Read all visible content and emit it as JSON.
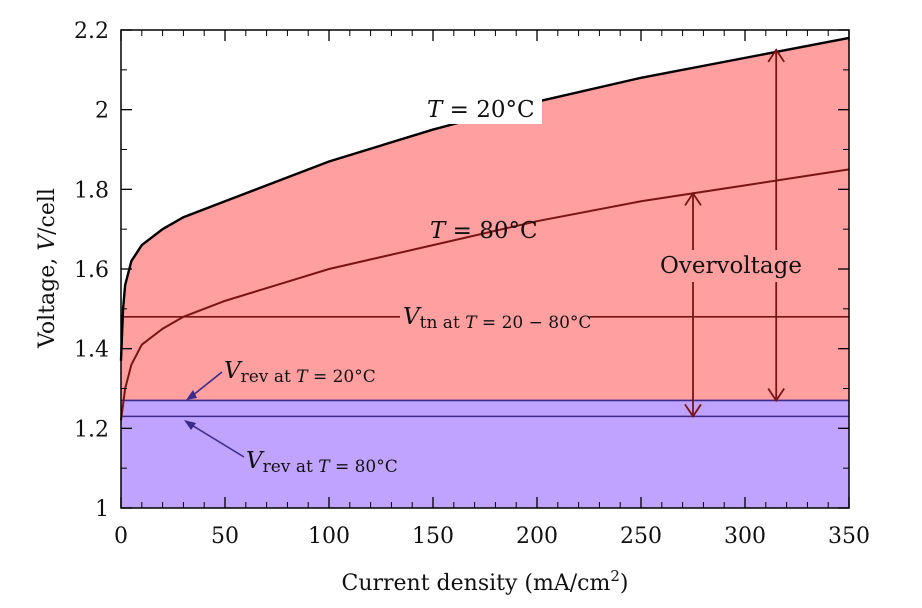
{
  "chart_data": {
    "type": "line",
    "xlabel": "Current density (mA/cm",
    "xlabel_sup": "2",
    "xlabel_tail": ")",
    "ylabel_prefix": "Voltage, ",
    "ylabel_var": "V",
    "ylabel_suffix": "/cell",
    "xlim": [
      0,
      350
    ],
    "ylim": [
      1,
      2.2
    ],
    "x_ticks": [
      "0",
      "50",
      "100",
      "150",
      "200",
      "250",
      "300",
      "350"
    ],
    "y_ticks": [
      "1",
      "1.2",
      "1.4",
      "1.6",
      "1.8",
      "2",
      "2.2"
    ],
    "grid": false,
    "series": [
      {
        "name": "T = 20°C",
        "color": "#000000",
        "x": [
          0,
          1,
          2,
          5,
          10,
          20,
          30,
          50,
          75,
          100,
          150,
          200,
          250,
          300,
          350
        ],
        "y": [
          1.37,
          1.5,
          1.56,
          1.62,
          1.66,
          1.7,
          1.73,
          1.77,
          1.82,
          1.87,
          1.95,
          2.02,
          2.08,
          2.13,
          2.18
        ]
      },
      {
        "name": "T = 80°C",
        "color": "#7a1414",
        "x": [
          0,
          2,
          5,
          10,
          20,
          30,
          50,
          75,
          100,
          150,
          200,
          250,
          300,
          350
        ],
        "y": [
          1.22,
          1.3,
          1.36,
          1.41,
          1.45,
          1.48,
          1.52,
          1.56,
          1.6,
          1.66,
          1.72,
          1.77,
          1.81,
          1.85
        ]
      }
    ],
    "reference_lines": [
      {
        "name": "V_tn",
        "y": 1.48,
        "color": "#7a1414"
      },
      {
        "name": "V_rev 20°C",
        "y": 1.27,
        "color": "#3b2a8a"
      },
      {
        "name": "V_rev 80°C",
        "y": 1.23,
        "color": "#3b2a8a"
      }
    ],
    "regions": {
      "overvoltage_color": "#ff9f9f",
      "reversible_color": "#c0a2ff"
    },
    "annotations": {
      "t20": {
        "var": "T",
        "text": " = 20°C"
      },
      "t80": {
        "var": "T",
        "text": " = 80°C"
      },
      "vtn": {
        "var": "V",
        "sub": "tn at ",
        "subvar": "T",
        "subtail": " = 20 − 80°C"
      },
      "vrev20": {
        "var": "V",
        "sub": "rev at ",
        "subvar": "T",
        "subtail": " = 20°C"
      },
      "vrev80": {
        "var": "V",
        "sub": "rev at ",
        "subvar": "T",
        "subtail": " = 80°C"
      },
      "overvoltage": "Overvoltage"
    },
    "overvoltage_arrows": [
      {
        "x": 315,
        "from": 1.27,
        "to": 2.15,
        "color": "#7a1414"
      },
      {
        "x": 275,
        "from": 1.23,
        "to": 1.79,
        "color": "#7a1414"
      }
    ]
  }
}
